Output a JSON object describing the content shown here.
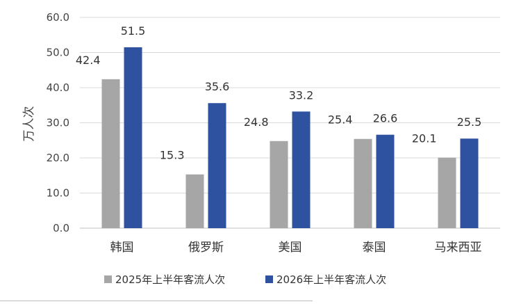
{
  "chart_data": {
    "type": "bar",
    "categories": [
      "韩国",
      "俄罗斯",
      "美国",
      "泰国",
      "马来西亚"
    ],
    "series": [
      {
        "name": "2025年上半年客流人次",
        "color": "#a6a6a6",
        "values": [
          42.4,
          15.3,
          24.8,
          25.4,
          20.1
        ],
        "labels": [
          "42.4",
          "15.3",
          "24.8",
          "25.4",
          "20.1"
        ]
      },
      {
        "name": "2026年上半年客流人次",
        "color": "#2f52a0",
        "values": [
          51.5,
          35.6,
          33.2,
          26.6,
          25.5
        ],
        "labels": [
          "51.5",
          "35.6",
          "33.2",
          "26.6",
          "25.5"
        ]
      }
    ],
    "ylabel": "万人次",
    "ylim": [
      0,
      60
    ],
    "yticks": [
      "0.0",
      "10.0",
      "20.0",
      "30.0",
      "40.0",
      "50.0",
      "60.0"
    ],
    "grid": true,
    "legend": "bottom"
  }
}
